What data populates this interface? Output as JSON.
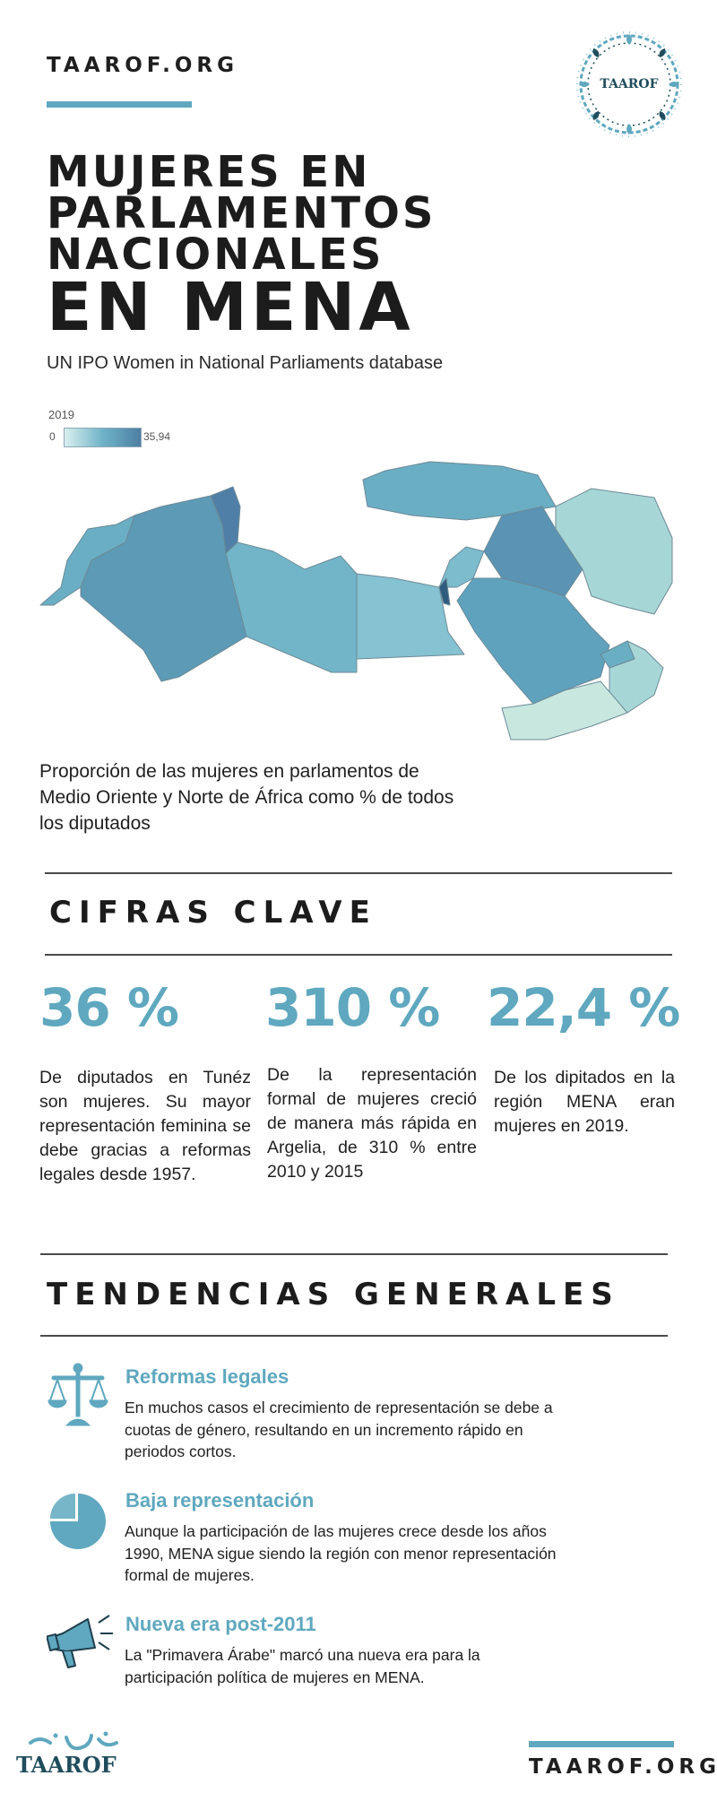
{
  "header": {
    "brand": "TAAROF.ORG",
    "logo_text": "TAAROF",
    "title_lines": [
      "MUJERES EN",
      "PARLAMENTOS",
      "NACIONALES",
      "EN MENA"
    ],
    "subtitle": "UN IPO Women in National Parliaments database"
  },
  "map": {
    "legend_year": "2019",
    "legend_min": "0",
    "legend_max": "35,94",
    "caption": "Proporción de las mujeres en parlamentos de Medio Oriente y Norte de África como % de todos los diputados",
    "colors": {
      "low": "#d9efee",
      "mid": "#6fb3c8",
      "high": "#4d7fa3"
    }
  },
  "key_figures": {
    "heading": "CIFRAS CLAVE",
    "items": [
      {
        "value": "36 %",
        "description": "De diputados en Tunéz son mujeres. Su mayor representación feminina se debe gracias a reformas legales desde 1957."
      },
      {
        "value": "310 %",
        "description": "De la representación formal de mujeres creció de manera más rápida en Argelia, de 310 % entre 2010 y 2015"
      },
      {
        "value": "22,4 %",
        "description": "De los dipitados en la región MENA eran mujeres en 2019."
      }
    ]
  },
  "trends": {
    "heading": "TENDENCIAS GENERALES",
    "items": [
      {
        "icon": "scales-icon",
        "title": "Reformas legales",
        "text": "En muchos casos el crecimiento de representación se debe a cuotas de género, resultando en un incremento rápido en periodos cortos."
      },
      {
        "icon": "pie-chart-icon",
        "title": "Baja representación",
        "text": "Aunque la participación de las mujeres crece desde los años 1990, MENA sigue siendo la región con menor representación formal de mujeres."
      },
      {
        "icon": "megaphone-icon",
        "title": "Nueva era post-2011",
        "text": "La \"Primavera Árabe\" marcó una nueva era para la participación política de mujeres en MENA."
      }
    ]
  },
  "footer": {
    "logo_text": "TAAROF",
    "brand": "TAAROF.ORG"
  },
  "accent_color": "#5fa8bf"
}
